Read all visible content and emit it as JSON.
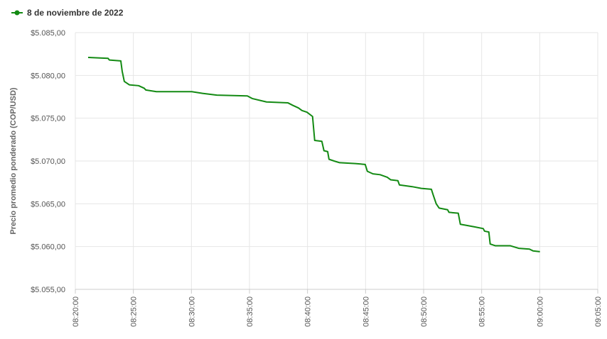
{
  "chart_data": {
    "type": "line",
    "y_label": "Precio promedio ponderado (COP/USD)",
    "grid": true,
    "legend": "top-left",
    "x": [
      "08:21:06",
      "08:22:49",
      "08:22:56",
      "08:23:55",
      "08:24:02",
      "08:24:13",
      "08:24:39",
      "08:25:27",
      "08:25:56",
      "08:26:04",
      "08:26:59",
      "08:28:12",
      "08:30:02",
      "08:30:57",
      "08:32:11",
      "08:34:49",
      "08:35:14",
      "08:36:28",
      "08:38:18",
      "08:38:44",
      "08:39:13",
      "08:39:31",
      "08:39:57",
      "08:40:26",
      "08:40:37",
      "08:41:14",
      "08:41:25",
      "08:41:44",
      "08:41:51",
      "08:42:17",
      "08:42:46",
      "08:44:07",
      "08:44:58",
      "08:45:09",
      "08:45:38",
      "08:46:15",
      "08:46:52",
      "08:47:10",
      "08:47:47",
      "08:47:55",
      "08:49:01",
      "08:49:48",
      "08:50:40",
      "08:50:50",
      "08:51:05",
      "08:51:20",
      "08:52:04",
      "08:52:11",
      "08:52:59",
      "08:53:10",
      "08:53:36",
      "08:54:23",
      "08:55:08",
      "08:55:15",
      "08:55:37",
      "08:55:44",
      "08:56:10",
      "08:57:27",
      "08:58:11",
      "08:59:07",
      "08:59:25",
      "09:00:01"
    ],
    "series": [
      {
        "name": "8 de noviembre de 2022",
        "color": "#138a13",
        "values": [
          5082.1,
          5082.0,
          5081.8,
          5081.7,
          5080.5,
          5079.3,
          5078.9,
          5078.8,
          5078.5,
          5078.3,
          5078.1,
          5078.1,
          5078.1,
          5077.9,
          5077.7,
          5077.6,
          5077.3,
          5076.9,
          5076.8,
          5076.5,
          5076.2,
          5075.9,
          5075.7,
          5075.2,
          5072.4,
          5072.3,
          5071.2,
          5071.1,
          5070.2,
          5070.0,
          5069.8,
          5069.7,
          5069.6,
          5068.8,
          5068.5,
          5068.4,
          5068.1,
          5067.8,
          5067.7,
          5067.2,
          5067.0,
          5066.8,
          5066.7,
          5066.0,
          5065.0,
          5064.5,
          5064.3,
          5064.0,
          5063.9,
          5062.6,
          5062.5,
          5062.3,
          5062.1,
          5061.8,
          5061.7,
          5060.3,
          5060.1,
          5060.1,
          5059.8,
          5059.7,
          5059.5,
          5059.4
        ]
      }
    ],
    "xlim": [
      "08:20:00",
      "09:05:00"
    ],
    "xticks": [
      "08:20:00",
      "08:25:00",
      "08:30:00",
      "08:35:00",
      "08:40:00",
      "08:45:00",
      "08:50:00",
      "08:55:00",
      "09:00:00",
      "09:05:00"
    ],
    "ylim": [
      5055,
      5085
    ],
    "yticks": [
      {
        "value": 5055,
        "label": "$5.055,00"
      },
      {
        "value": 5060,
        "label": "$5.060,00"
      },
      {
        "value": 5065,
        "label": "$5.065,00"
      },
      {
        "value": 5070,
        "label": "$5.070,00"
      },
      {
        "value": 5075,
        "label": "$5.075,00"
      },
      {
        "value": 5080,
        "label": "$5.080,00"
      },
      {
        "value": 5085,
        "label": "$5.085,00"
      }
    ]
  }
}
